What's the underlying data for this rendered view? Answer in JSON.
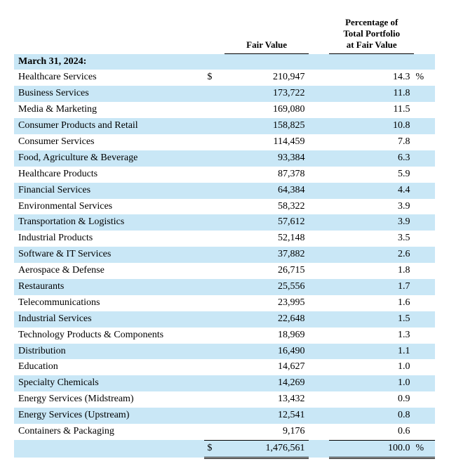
{
  "headers": {
    "fair_value": "Fair Value",
    "pct": "Percentage of\nTotal Portfolio\nat Fair Value"
  },
  "date_heading": "March 31, 2024:",
  "currency_symbol": "$",
  "percent_symbol": "%",
  "rows": [
    {
      "label": "Healthcare Services",
      "fair_value": "210,947",
      "pct": "14.3"
    },
    {
      "label": "Business Services",
      "fair_value": "173,722",
      "pct": "11.8"
    },
    {
      "label": "Media & Marketing",
      "fair_value": "169,080",
      "pct": "11.5"
    },
    {
      "label": "Consumer Products and Retail",
      "fair_value": "158,825",
      "pct": "10.8"
    },
    {
      "label": "Consumer Services",
      "fair_value": "114,459",
      "pct": "7.8"
    },
    {
      "label": "Food, Agriculture & Beverage",
      "fair_value": "93,384",
      "pct": "6.3"
    },
    {
      "label": "Healthcare Products",
      "fair_value": "87,378",
      "pct": "5.9"
    },
    {
      "label": "Financial Services",
      "fair_value": "64,384",
      "pct": "4.4"
    },
    {
      "label": "Environmental Services",
      "fair_value": "58,322",
      "pct": "3.9"
    },
    {
      "label": "Transportation & Logistics",
      "fair_value": "57,612",
      "pct": "3.9"
    },
    {
      "label": "Industrial Products",
      "fair_value": "52,148",
      "pct": "3.5"
    },
    {
      "label": "Software & IT Services",
      "fair_value": "37,882",
      "pct": "2.6"
    },
    {
      "label": "Aerospace & Defense",
      "fair_value": "26,715",
      "pct": "1.8"
    },
    {
      "label": "Restaurants",
      "fair_value": "25,556",
      "pct": "1.7"
    },
    {
      "label": "Telecommunications",
      "fair_value": "23,995",
      "pct": "1.6"
    },
    {
      "label": "Industrial Services",
      "fair_value": "22,648",
      "pct": "1.5"
    },
    {
      "label": "Technology Products & Components",
      "fair_value": "18,969",
      "pct": "1.3"
    },
    {
      "label": "Distribution",
      "fair_value": "16,490",
      "pct": "1.1"
    },
    {
      "label": "Education",
      "fair_value": "14,627",
      "pct": "1.0"
    },
    {
      "label": "Specialty Chemicals",
      "fair_value": "14,269",
      "pct": "1.0"
    },
    {
      "label": "Energy Services (Midstream)",
      "fair_value": "13,432",
      "pct": "0.9"
    },
    {
      "label": "Energy Services (Upstream)",
      "fair_value": "12,541",
      "pct": "0.8"
    },
    {
      "label": "Containers & Packaging",
      "fair_value": "9,176",
      "pct": "0.6"
    }
  ],
  "total": {
    "fair_value": "1,476,561",
    "pct": "100.0"
  },
  "style": {
    "alt_row_bg": "#c9e7f6",
    "font_family": "Times New Roman",
    "font_size_pt": 14,
    "header_font_size_pt": 13,
    "border_color": "#000000",
    "background_color": "#ffffff"
  }
}
